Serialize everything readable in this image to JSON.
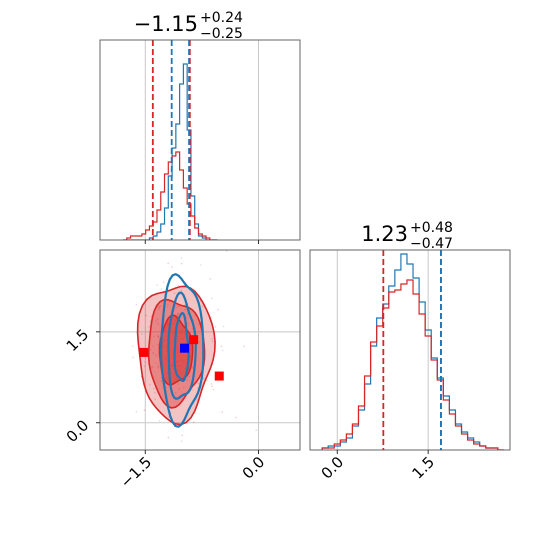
{
  "chart_data": [
    {
      "type": "histogram",
      "panel": "marginal-param1",
      "title": {
        "value": "−1.15",
        "upper": "+0.24",
        "lower": "−0.25"
      },
      "x": [
        -1.77,
        -1.72,
        -1.67,
        -1.62,
        -1.57,
        -1.52,
        -1.47,
        -1.42,
        -1.37,
        -1.32,
        -1.27,
        -1.22,
        -1.17,
        -1.12,
        -1.07,
        -1.02,
        -0.97,
        -0.92,
        -0.87,
        -0.82,
        -0.77,
        -0.72,
        -0.67,
        -0.62,
        -0.57
      ],
      "xlim": [
        -2.1,
        0.55
      ],
      "ylim": [
        0,
        1
      ],
      "series": [
        {
          "color": "#1f77b4",
          "values": [
            0,
            0,
            0,
            0,
            0,
            0,
            0,
            0.01,
            0.02,
            0.04,
            0.08,
            0.16,
            0.32,
            0.46,
            0.58,
            0.78,
            0.88,
            0.55,
            0.22,
            0.08,
            0.02,
            0.01,
            0,
            0,
            0
          ]
        },
        {
          "color": "#d62728",
          "values": [
            0,
            0.01,
            0.02,
            0.02,
            0.02,
            0.03,
            0.05,
            0.07,
            0.09,
            0.15,
            0.24,
            0.33,
            0.39,
            0.42,
            0.44,
            0.35,
            0.26,
            0.18,
            0.12,
            0.06,
            0.03,
            0.02,
            0.01,
            0,
            0
          ]
        }
      ],
      "quantile_lines": [
        {
          "color": "#d62728",
          "x": [
            -1.4,
            -0.91
          ]
        },
        {
          "color": "#1f77b4",
          "x": [
            -1.15,
            -0.92
          ]
        }
      ],
      "x_ticks": [
        -1.5,
        0.0
      ],
      "grid": true
    },
    {
      "type": "histogram",
      "panel": "marginal-param2",
      "title": {
        "value": "1.23",
        "upper": "+0.48",
        "lower": "−0.47"
      },
      "x": [
        -0.2,
        -0.1,
        0.0,
        0.1,
        0.2,
        0.3,
        0.4,
        0.5,
        0.6,
        0.7,
        0.8,
        0.9,
        1.0,
        1.1,
        1.2,
        1.3,
        1.4,
        1.5,
        1.6,
        1.7,
        1.8,
        1.9,
        2.0,
        2.1,
        2.2,
        2.3,
        2.4,
        2.5,
        2.6,
        2.7
      ],
      "xlim": [
        -0.45,
        2.85
      ],
      "ylim": [
        0,
        1
      ],
      "x_ticks": [
        0.0,
        1.5
      ],
      "x_tick_labels": [
        "0.0",
        "1.5"
      ],
      "series": [
        {
          "color": "#1f77b4",
          "values": [
            0.01,
            0.02,
            0.02,
            0.04,
            0.06,
            0.12,
            0.2,
            0.33,
            0.52,
            0.66,
            0.73,
            0.82,
            0.9,
            0.98,
            0.93,
            0.86,
            0.74,
            0.6,
            0.46,
            0.36,
            0.27,
            0.2,
            0.13,
            0.09,
            0.06,
            0.04,
            0.02,
            0.01,
            0.01,
            0
          ]
        },
        {
          "color": "#d62728",
          "values": [
            0.01,
            0.01,
            0.03,
            0.05,
            0.08,
            0.13,
            0.22,
            0.37,
            0.54,
            0.62,
            0.71,
            0.79,
            0.8,
            0.83,
            0.85,
            0.78,
            0.68,
            0.57,
            0.45,
            0.35,
            0.25,
            0.18,
            0.12,
            0.08,
            0.05,
            0.03,
            0.02,
            0.01,
            0.01,
            0
          ]
        }
      ],
      "quantile_lines": [
        {
          "color": "#d62728",
          "x": [
            0.76,
            1.71
          ]
        },
        {
          "color": "#1f77b4",
          "x": [
            1.71
          ]
        }
      ],
      "grid": true
    },
    {
      "type": "contour",
      "panel": "joint-param1-param2",
      "xlim": [
        -2.1,
        0.55
      ],
      "ylim": [
        -0.45,
        2.85
      ],
      "x_ticks": [
        -1.5,
        0.0
      ],
      "x_tick_labels": [
        "−1.5",
        "0.0"
      ],
      "y_ticks": [
        0.0,
        1.5
      ],
      "y_tick_labels": [
        "0.0",
        "1.5"
      ],
      "series": [
        {
          "color": "#d62728",
          "center": [
            -1.1,
            1.18
          ],
          "levels": [
            {
              "sx": 0.5,
              "sy": 1.12
            },
            {
              "sx": 0.37,
              "sy": 0.86
            },
            {
              "sx": 0.22,
              "sy": 0.55
            }
          ]
        },
        {
          "color": "#1f77b4",
          "center": [
            -1.02,
            1.22
          ],
          "levels": [
            {
              "sx": 0.28,
              "sy": 1.2
            },
            {
              "sx": 0.18,
              "sy": 0.85
            },
            {
              "sx": 0.09,
              "sy": 0.55
            }
          ]
        }
      ],
      "markers": [
        {
          "color": "#ff0000",
          "x": -1.52,
          "y": 1.16
        },
        {
          "color": "#ff0000",
          "x": -0.86,
          "y": 1.37
        },
        {
          "color": "#ff0000",
          "x": -0.52,
          "y": 0.77
        },
        {
          "color": "#0000ff",
          "x": -0.98,
          "y": 1.23
        }
      ],
      "grid": true
    }
  ]
}
